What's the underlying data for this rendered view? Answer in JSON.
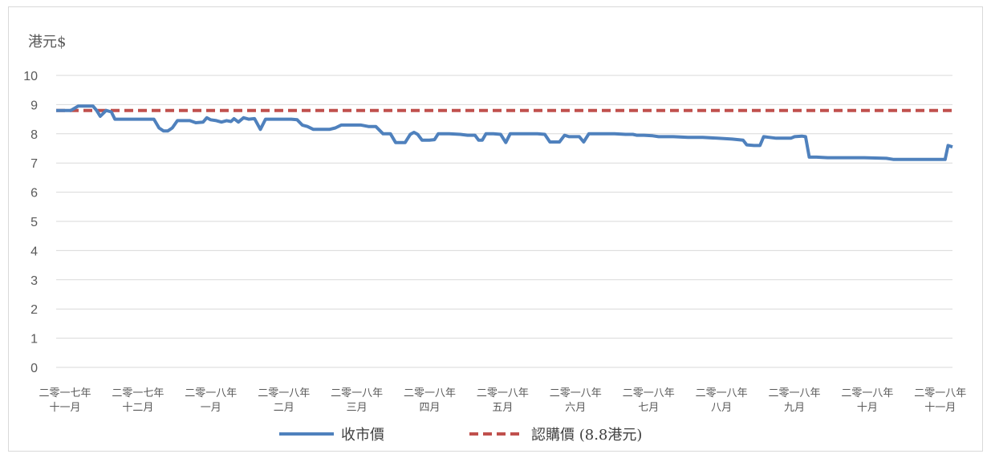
{
  "chart_data": {
    "type": "line",
    "title": "",
    "ylabel": "港元$",
    "xlabel": "",
    "ylim": [
      0,
      10
    ],
    "yticks": [
      0,
      1,
      2,
      3,
      4,
      5,
      6,
      7,
      8,
      9,
      10
    ],
    "x_ticks": [
      {
        "line1": "二零一七年",
        "line2": "十一月"
      },
      {
        "line1": "二零一七年",
        "line2": "十二月"
      },
      {
        "line1": "二零一八年",
        "line2": "一月"
      },
      {
        "line1": "二零一八年",
        "line2": "二月"
      },
      {
        "line1": "二零一八年",
        "line2": "三月"
      },
      {
        "line1": "二零一八年",
        "line2": "四月"
      },
      {
        "line1": "二零一八年",
        "line2": "五月"
      },
      {
        "line1": "二零一八年",
        "line2": "六月"
      },
      {
        "line1": "二零一八年",
        "line2": "七月"
      },
      {
        "line1": "二零一八年",
        "line2": "八月"
      },
      {
        "line1": "二零一八年",
        "line2": "九月"
      },
      {
        "line1": "二零一八年",
        "line2": "十月"
      },
      {
        "line1": "二零一八年",
        "line2": "十一月"
      }
    ],
    "grid": true,
    "legend_position": "bottom",
    "series": [
      {
        "name": "收市價",
        "color": "#4f81bd",
        "style": "solid",
        "points": [
          [
            0,
            8.8
          ],
          [
            0.1,
            8.8
          ],
          [
            0.2,
            8.8
          ],
          [
            0.3,
            8.95
          ],
          [
            0.4,
            8.95
          ],
          [
            0.5,
            8.95
          ],
          [
            0.55,
            8.8
          ],
          [
            0.6,
            8.6
          ],
          [
            0.68,
            8.8
          ],
          [
            0.75,
            8.75
          ],
          [
            0.8,
            8.5
          ],
          [
            0.9,
            8.5
          ],
          [
            1.0,
            8.5
          ],
          [
            1.2,
            8.5
          ],
          [
            1.33,
            8.5
          ],
          [
            1.4,
            8.2
          ],
          [
            1.46,
            8.1
          ],
          [
            1.52,
            8.1
          ],
          [
            1.58,
            8.2
          ],
          [
            1.65,
            8.45
          ],
          [
            1.75,
            8.45
          ],
          [
            1.82,
            8.45
          ],
          [
            1.9,
            8.38
          ],
          [
            2.0,
            8.4
          ],
          [
            2.05,
            8.55
          ],
          [
            2.1,
            8.48
          ],
          [
            2.18,
            8.45
          ],
          [
            2.25,
            8.4
          ],
          [
            2.32,
            8.45
          ],
          [
            2.38,
            8.42
          ],
          [
            2.42,
            8.52
          ],
          [
            2.48,
            8.4
          ],
          [
            2.55,
            8.55
          ],
          [
            2.62,
            8.5
          ],
          [
            2.7,
            8.52
          ],
          [
            2.78,
            8.15
          ],
          [
            2.85,
            8.5
          ],
          [
            3.0,
            8.5
          ],
          [
            3.2,
            8.5
          ],
          [
            3.28,
            8.48
          ],
          [
            3.35,
            8.3
          ],
          [
            3.42,
            8.25
          ],
          [
            3.5,
            8.15
          ],
          [
            3.6,
            8.15
          ],
          [
            3.72,
            8.15
          ],
          [
            3.8,
            8.2
          ],
          [
            3.88,
            8.3
          ],
          [
            4.0,
            8.3
          ],
          [
            4.15,
            8.3
          ],
          [
            4.25,
            8.25
          ],
          [
            4.35,
            8.25
          ],
          [
            4.45,
            8.0
          ],
          [
            4.55,
            8.0
          ],
          [
            4.62,
            7.7
          ],
          [
            4.68,
            7.7
          ],
          [
            4.75,
            7.7
          ],
          [
            4.82,
            7.98
          ],
          [
            4.87,
            8.05
          ],
          [
            4.92,
            7.98
          ],
          [
            4.98,
            7.78
          ],
          [
            5.08,
            7.78
          ],
          [
            5.15,
            7.8
          ],
          [
            5.2,
            8.0
          ],
          [
            5.35,
            8.0
          ],
          [
            5.5,
            7.98
          ],
          [
            5.6,
            7.95
          ],
          [
            5.7,
            7.95
          ],
          [
            5.75,
            7.78
          ],
          [
            5.8,
            7.78
          ],
          [
            5.85,
            8.0
          ],
          [
            5.95,
            8.0
          ],
          [
            6.05,
            7.98
          ],
          [
            6.12,
            7.7
          ],
          [
            6.18,
            8.0
          ],
          [
            6.35,
            8.0
          ],
          [
            6.55,
            8.0
          ],
          [
            6.65,
            7.98
          ],
          [
            6.72,
            7.72
          ],
          [
            6.8,
            7.72
          ],
          [
            6.85,
            7.72
          ],
          [
            6.92,
            7.95
          ],
          [
            6.98,
            7.9
          ],
          [
            7.05,
            7.9
          ],
          [
            7.12,
            7.9
          ],
          [
            7.18,
            7.72
          ],
          [
            7.25,
            8.0
          ],
          [
            7.4,
            8.0
          ],
          [
            7.6,
            8.0
          ],
          [
            7.75,
            7.98
          ],
          [
            7.85,
            7.98
          ],
          [
            7.9,
            7.95
          ],
          [
            7.95,
            7.95
          ],
          [
            8.0,
            7.95
          ],
          [
            8.12,
            7.93
          ],
          [
            8.2,
            7.9
          ],
          [
            8.4,
            7.9
          ],
          [
            8.6,
            7.88
          ],
          [
            8.8,
            7.88
          ],
          [
            9.0,
            7.85
          ],
          [
            9.2,
            7.82
          ],
          [
            9.35,
            7.78
          ],
          [
            9.4,
            7.62
          ],
          [
            9.5,
            7.6
          ],
          [
            9.58,
            7.6
          ],
          [
            9.63,
            7.9
          ],
          [
            9.7,
            7.88
          ],
          [
            9.8,
            7.85
          ],
          [
            9.9,
            7.85
          ],
          [
            10.0,
            7.85
          ],
          [
            10.05,
            7.9
          ],
          [
            10.15,
            7.92
          ],
          [
            10.2,
            7.9
          ],
          [
            10.25,
            7.2
          ],
          [
            10.35,
            7.2
          ],
          [
            10.5,
            7.18
          ],
          [
            10.7,
            7.18
          ],
          [
            11.0,
            7.18
          ],
          [
            11.3,
            7.16
          ],
          [
            11.4,
            7.12
          ],
          [
            11.6,
            7.12
          ],
          [
            11.8,
            7.12
          ],
          [
            12.0,
            7.12
          ],
          [
            12.08,
            7.12
          ],
          [
            12.1,
            7.12
          ],
          [
            12.14,
            7.6
          ],
          [
            12.2,
            7.55
          ]
        ]
      },
      {
        "name": "認購價 (8.8港元)",
        "color": "#c0504d",
        "style": "dashed",
        "points": [
          [
            0,
            8.8
          ],
          [
            12.2,
            8.8
          ]
        ]
      }
    ]
  }
}
